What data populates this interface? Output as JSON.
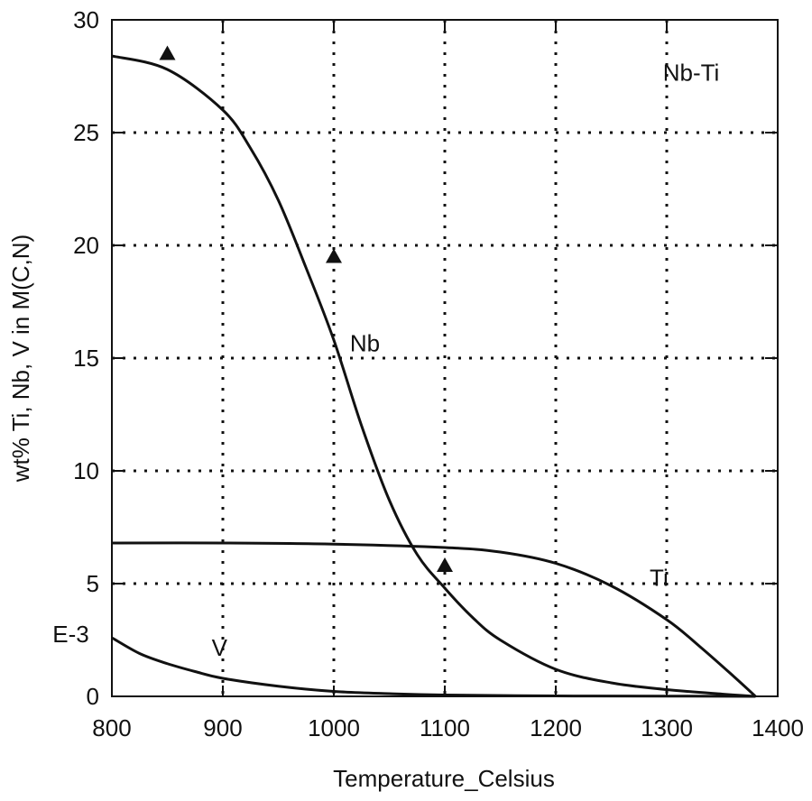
{
  "chart_data": {
    "type": "line",
    "title": "",
    "xlabel": "Temperature_Celsius",
    "ylabel": "wt% Ti, Nb, V in M(C,N)",
    "xlim": [
      800,
      1400
    ],
    "ylim": [
      0,
      30
    ],
    "x_ticks": [
      800,
      900,
      1000,
      1100,
      1200,
      1300,
      1400
    ],
    "y_ticks": [
      0,
      5,
      10,
      15,
      20,
      25,
      30
    ],
    "grid": true,
    "grid_style": "dotted",
    "series": [
      {
        "name": "Nb",
        "x": [
          800,
          850,
          900,
          925,
          950,
          975,
          1000,
          1025,
          1050,
          1075,
          1100,
          1125,
          1150,
          1200,
          1250,
          1300,
          1350,
          1380
        ],
        "y": [
          28.4,
          27.8,
          26.0,
          24.3,
          22.0,
          19.0,
          15.8,
          12.0,
          8.7,
          6.3,
          4.8,
          3.5,
          2.5,
          1.2,
          0.6,
          0.3,
          0.1,
          0.0
        ]
      },
      {
        "name": "Ti",
        "x": [
          800,
          900,
          1000,
          1100,
          1150,
          1200,
          1250,
          1300,
          1330,
          1360,
          1380
        ],
        "y": [
          6.8,
          6.8,
          6.75,
          6.6,
          6.4,
          5.9,
          4.9,
          3.4,
          2.2,
          0.9,
          0.0
        ]
      },
      {
        "name": "V",
        "x": [
          800,
          825,
          850,
          875,
          900,
          950,
          1000,
          1050,
          1100,
          1200,
          1300,
          1380
        ],
        "y": [
          2.6,
          1.9,
          1.45,
          1.1,
          0.8,
          0.45,
          0.22,
          0.12,
          0.06,
          0.02,
          0.01,
          0.0
        ]
      }
    ],
    "markers": {
      "shape": "triangle",
      "x": [
        850,
        1000,
        1100
      ],
      "y": [
        28.5,
        19.5,
        5.8
      ]
    },
    "annotations": [
      {
        "text": "Nb-Ti",
        "x": 1322,
        "y": 27.3
      },
      {
        "text": "Nb",
        "x": 1028,
        "y": 15.3
      },
      {
        "text": "Ti",
        "x": 1293,
        "y": 4.9
      },
      {
        "text": "V",
        "x": 897,
        "y": 1.8
      },
      {
        "text": "E-3",
        "x": 763,
        "y": 2.4
      }
    ]
  }
}
